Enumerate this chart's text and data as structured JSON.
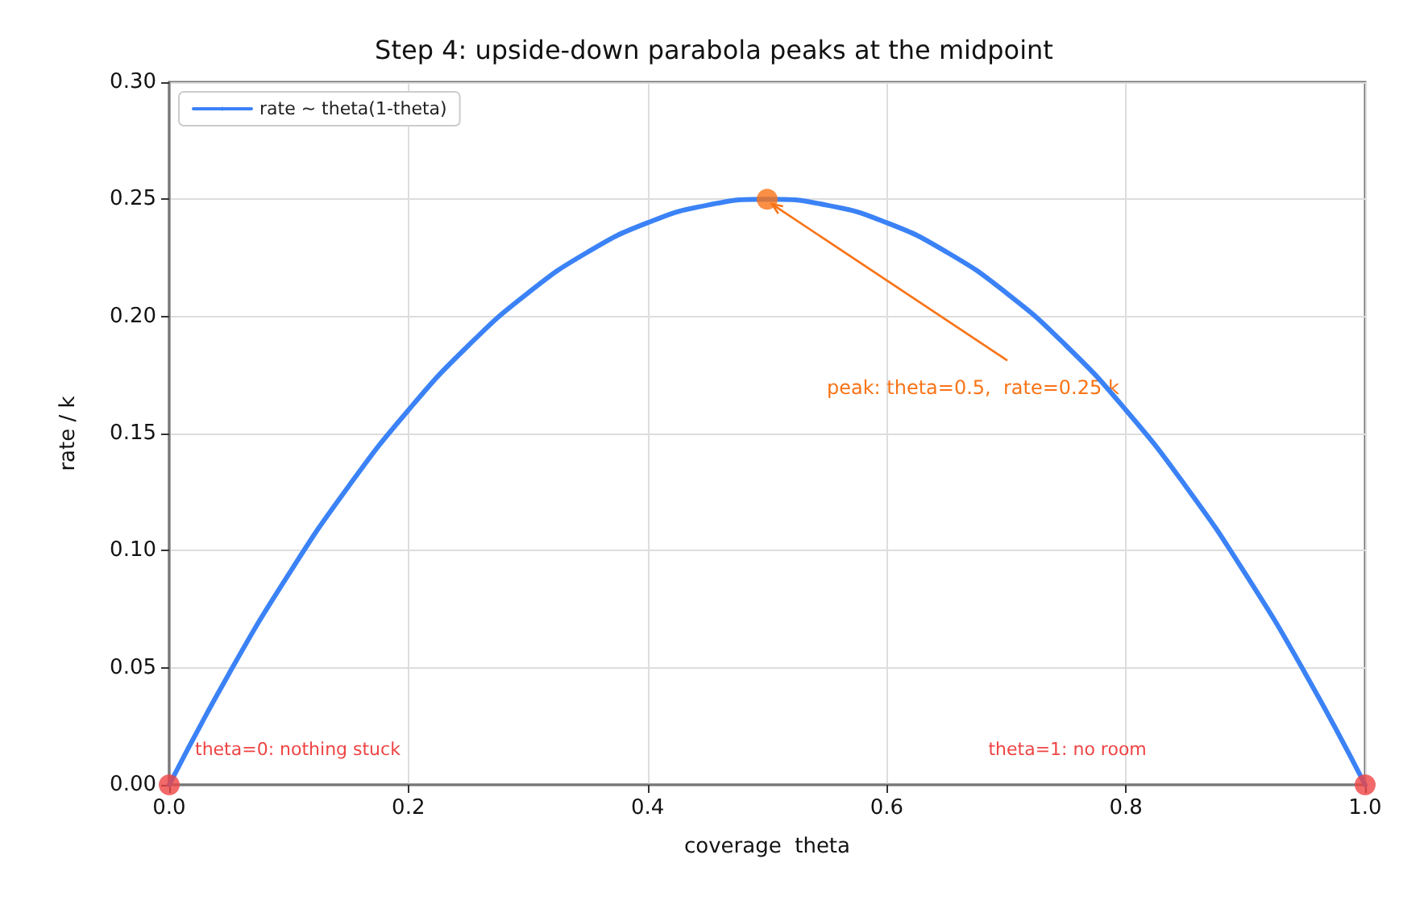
{
  "chart_data": {
    "type": "line",
    "title": "Step 4: upside-down parabola peaks at the midpoint",
    "xlabel": "coverage  theta",
    "ylabel": "rate / k",
    "x": [
      0,
      0.05,
      0.1,
      0.15,
      0.2,
      0.25,
      0.3,
      0.35,
      0.4,
      0.45,
      0.5,
      0.55,
      0.6,
      0.65,
      0.7,
      0.75,
      0.8,
      0.85,
      0.9,
      0.95,
      1
    ],
    "series": [
      {
        "name": "rate ~ theta(1-theta)",
        "color": "#3b82f6",
        "values": [
          0,
          0.0475,
          0.09,
          0.1275,
          0.16,
          0.1875,
          0.21,
          0.2275,
          0.24,
          0.2475,
          0.25,
          0.2475,
          0.24,
          0.2275,
          0.21,
          0.1875,
          0.16,
          0.1275,
          0.09,
          0.0475,
          0
        ]
      },
      {
        "type": "scatter",
        "marker": "circle",
        "color": "#f97316",
        "x": [
          0.5
        ],
        "values": [
          0.25
        ]
      },
      {
        "type": "scatter",
        "marker": "circle",
        "color": "#ef4444",
        "x": [
          0,
          1
        ],
        "values": [
          0,
          0
        ]
      }
    ],
    "annotations": [
      {
        "text": "peak: theta=0.5,  rate=0.25 k",
        "x": 0.5,
        "y": 0.25
      },
      {
        "text": "theta=0: nothing stuck",
        "x": 0,
        "y": 0
      },
      "theta=1: no room"
    ],
    "xlim": [
      0,
      1
    ],
    "xticks": [
      {
        "value": 0,
        "label": "0.0"
      },
      {
        "value": 0.2,
        "label": "0.2"
      },
      {
        "value": 0.4,
        "label": "0.4"
      },
      {
        "value": 0.6,
        "label": "0.6"
      },
      {
        "value": 0.8,
        "label": "0.8"
      },
      {
        "value": 1,
        "label": "1.0"
      }
    ],
    "ylim": [
      0,
      0.3
    ],
    "yticks": [
      {
        "value": 0,
        "label": "0.00"
      },
      {
        "value": 0.05,
        "label": "0.05"
      },
      {
        "value": 0.1,
        "label": "0.10"
      },
      {
        "value": 0.15,
        "label": "0.15"
      },
      {
        "value": 0.2,
        "label": "0.20"
      },
      {
        "value": 0.25,
        "label": "0.25"
      },
      {
        "value": 0.3,
        "label": "0.30"
      }
    ],
    "grid": true,
    "legend": "top left",
    "line_style": "solid"
  }
}
